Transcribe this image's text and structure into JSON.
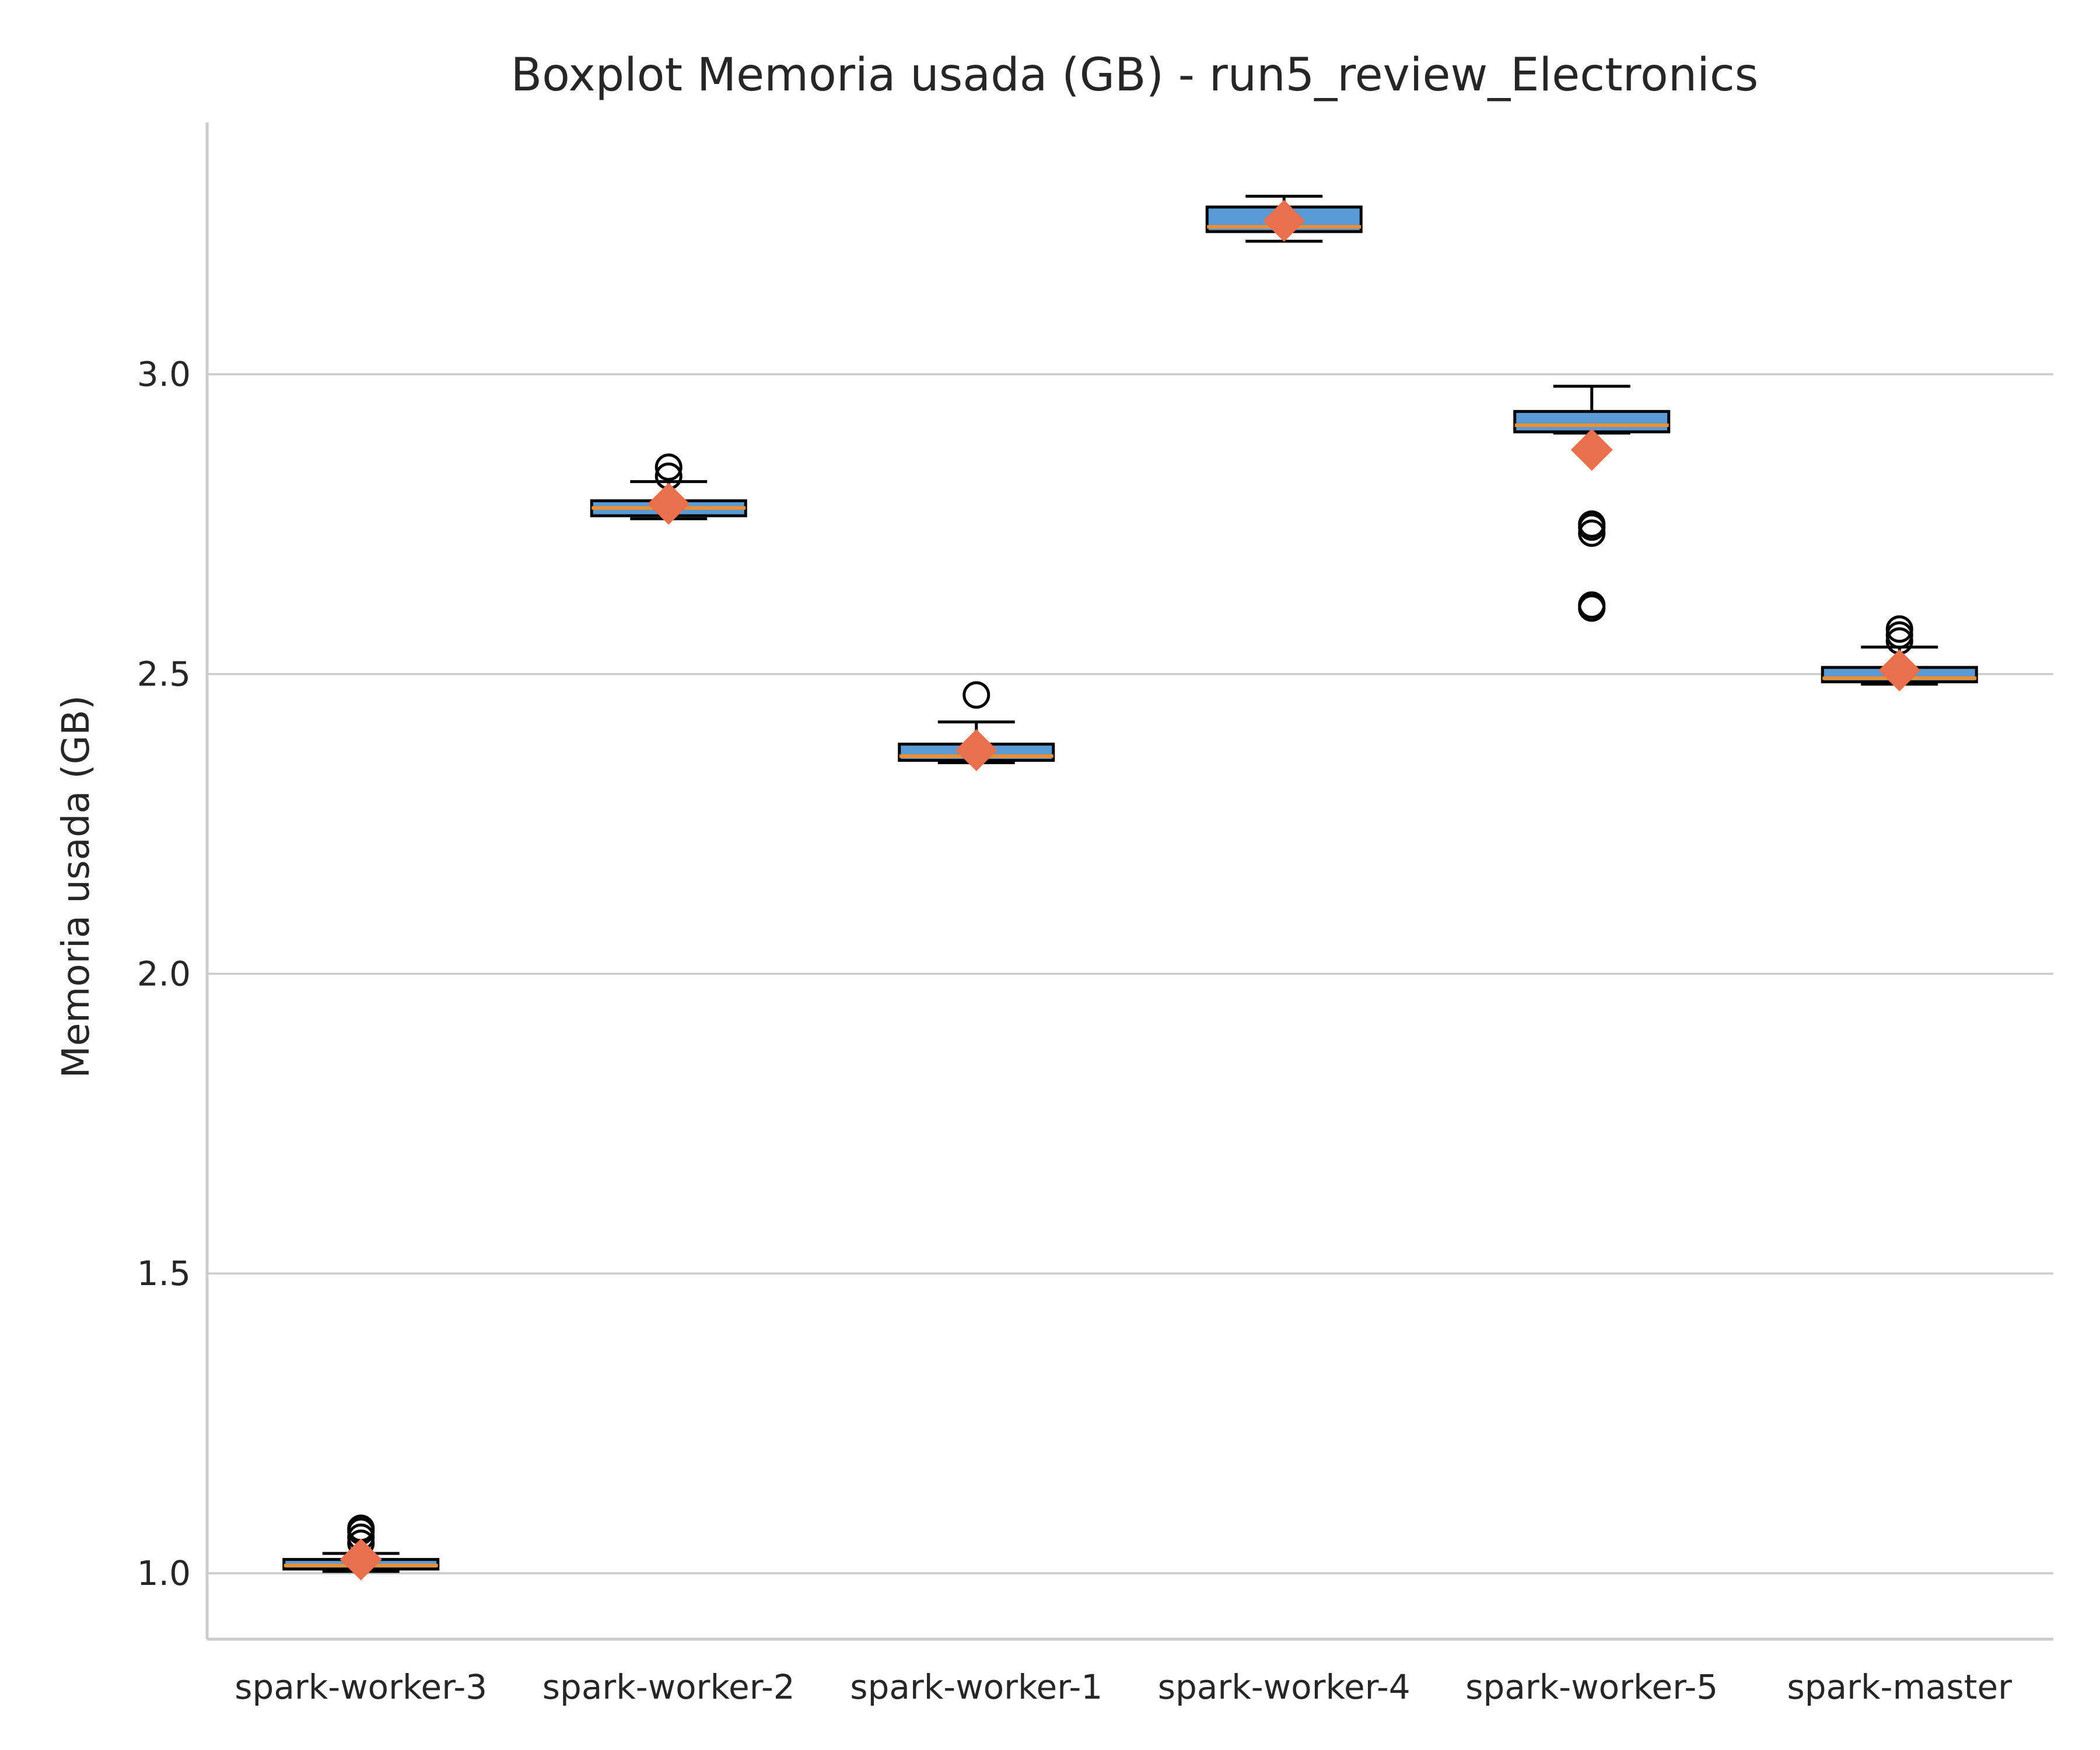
{
  "chart_data": {
    "type": "boxplot",
    "title": "Boxplot Memoria usada (GB) - run5_review_Electronics",
    "xlabel": "",
    "ylabel": "Memoria usada (GB)",
    "ylim": [
      0.89,
      3.42
    ],
    "yticks": [
      1.0,
      1.5,
      2.0,
      2.5,
      3.0
    ],
    "ytick_labels": [
      "1.0",
      "1.5",
      "2.0",
      "2.5",
      "3.0"
    ],
    "grid": "horizontal",
    "categories": [
      "spark-worker-3",
      "spark-worker-2",
      "spark-worker-1",
      "spark-worker-4",
      "spark-worker-5",
      "spark-master"
    ],
    "boxes": [
      {
        "whislo": 1.003,
        "q1": 1.007,
        "median": 1.013,
        "q3": 1.023,
        "whishi": 1.033,
        "mean": 1.023,
        "fliers": [
          1.05,
          1.06,
          1.07,
          1.075
        ]
      },
      {
        "whislo": 2.759,
        "q1": 2.764,
        "median": 2.777,
        "q3": 2.789,
        "whishi": 2.821,
        "mean": 2.784,
        "fliers": [
          2.83,
          2.845
        ]
      },
      {
        "whislo": 2.352,
        "q1": 2.356,
        "median": 2.363,
        "q3": 2.383,
        "whishi": 2.42,
        "mean": 2.373,
        "fliers": [
          2.465
        ]
      },
      {
        "whislo": 3.222,
        "q1": 3.238,
        "median": 3.246,
        "q3": 3.279,
        "whishi": 3.297,
        "mean": 3.256,
        "fliers": []
      },
      {
        "whislo": 2.902,
        "q1": 2.904,
        "median": 2.915,
        "q3": 2.938,
        "whishi": 2.98,
        "mean": 2.874,
        "fliers": [
          2.61,
          2.615,
          2.735,
          2.745,
          2.75
        ]
      },
      {
        "whislo": 2.483,
        "q1": 2.487,
        "median": 2.493,
        "q3": 2.511,
        "whishi": 2.545,
        "mean": 2.506,
        "fliers": [
          2.555,
          2.565,
          2.575
        ]
      }
    ],
    "colors": {
      "box_fill": "#5b9bd5",
      "box_edge": "#000000",
      "median": "#f28e2b",
      "mean_marker": "#e8704f",
      "flier_edge": "#000000",
      "grid": "#cccccc",
      "spine": "#cccccc"
    }
  }
}
